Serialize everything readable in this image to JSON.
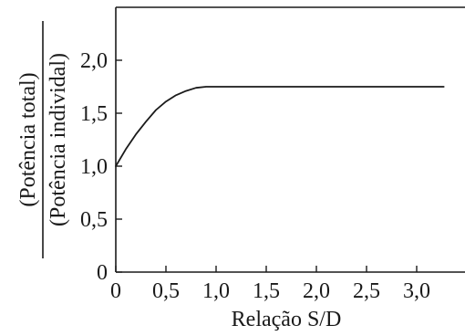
{
  "chart_data": {
    "type": "line",
    "title": "",
    "xlabel": "Relação S/D",
    "ylabel_numerator": "(Potência total)",
    "ylabel_denominator": "(Potência individal)",
    "xlim": [
      0,
      3.5
    ],
    "ylim": [
      0,
      2.5
    ],
    "x_ticks": [
      0,
      0.5,
      1.0,
      1.5,
      2.0,
      2.5,
      3.0
    ],
    "x_tick_labels": [
      "0",
      "0,5",
      "1,0",
      "1,5",
      "2,0",
      "2,5",
      "3,0"
    ],
    "y_ticks": [
      0,
      0.5,
      1.0,
      1.5,
      2.0
    ],
    "y_tick_labels": [
      "0",
      "0,5",
      "1,0",
      "1,5",
      "2,0"
    ],
    "grid": false,
    "series": [
      {
        "x": [
          0,
          0.1,
          0.2,
          0.3,
          0.4,
          0.5,
          0.6,
          0.7,
          0.8,
          0.9,
          1.0,
          1.5,
          2.0,
          2.5,
          3.0,
          3.27
        ],
        "y": [
          1.0,
          1.16,
          1.3,
          1.42,
          1.53,
          1.61,
          1.67,
          1.71,
          1.74,
          1.75,
          1.75,
          1.75,
          1.75,
          1.75,
          1.75,
          1.75
        ],
        "color": "#1a1a1a"
      }
    ]
  }
}
